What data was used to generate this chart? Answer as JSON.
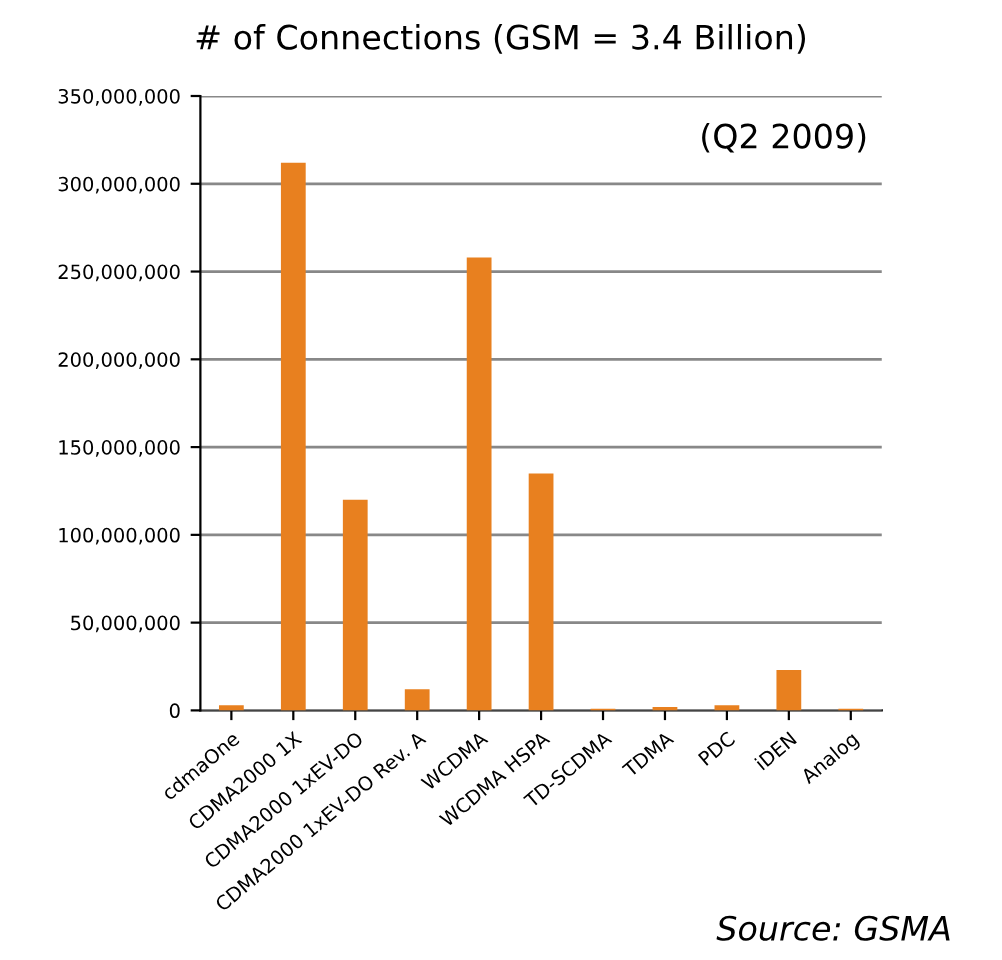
{
  "chart_data": {
    "type": "bar",
    "title": "# of Connections (GSM = 3.4 Billion)",
    "categories": [
      "cdmaOne",
      "CDMA2000 1X",
      "CDMA2000 1xEV-DO",
      "CDMA2000 1xEV-DO Rev. A",
      "WCDMA",
      "WCDMA HSPA",
      "TD-SCDMA",
      "TDMA",
      "PDC",
      "iDEN",
      "Analog"
    ],
    "values": [
      3000000,
      312000000,
      120000000,
      12000000,
      258000000,
      135000000,
      1000000,
      2000000,
      3000000,
      23000000,
      1000000
    ],
    "color": "#e8801f",
    "ylim": [
      0,
      350000000
    ],
    "yticks": [
      {
        "value": 0,
        "label": "0"
      },
      {
        "value": 50000000,
        "label": "50,000,000"
      },
      {
        "value": 100000000,
        "label": "100,000,000"
      },
      {
        "value": 150000000,
        "label": "150,000,000"
      },
      {
        "value": 200000000,
        "label": "200,000,000"
      },
      {
        "value": 250000000,
        "label": "250,000,000"
      },
      {
        "value": 300000000,
        "label": "300,000,000"
      },
      {
        "value": 350000000,
        "label": "350,000,000"
      }
    ],
    "grid": "y",
    "annotations": [
      "(Q2 2009)",
      "Source: GSMA"
    ]
  }
}
